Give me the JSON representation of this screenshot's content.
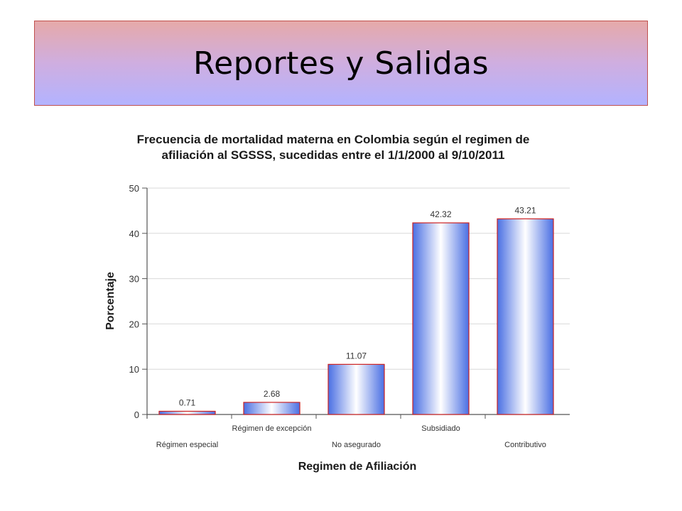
{
  "slide": {
    "title": "Reportes y Salidas"
  },
  "colors": {
    "bar_edge": "#4a6fe3",
    "bar_center": "#ffffff",
    "bar_border": "#cc2222",
    "grid": "#d9d9d9",
    "axis": "#555555"
  },
  "chart_data": {
    "type": "bar",
    "title_lines": [
      "Frecuencia de mortalidad materna en Colombia según el regimen de",
      "afiliación al SGSSS, sucedidas entre el 1/1/2000 al 9/10/2011"
    ],
    "categories": [
      "Régimen especial",
      "Régimen de excepción",
      "No asegurado",
      "Subsidiado",
      "Contributivo"
    ],
    "values": [
      0.71,
      2.68,
      11.07,
      42.32,
      43.21
    ],
    "value_labels": [
      "0.71",
      "2.68",
      "11.07",
      "42.32",
      "43.21"
    ],
    "xlabel": "Regimen de Afiliación",
    "ylabel": "Porcentaje",
    "ylim": [
      0,
      50
    ],
    "yticks": [
      0,
      10,
      20,
      30,
      40,
      50
    ],
    "grid": true,
    "category_label_rows": "staggered"
  }
}
